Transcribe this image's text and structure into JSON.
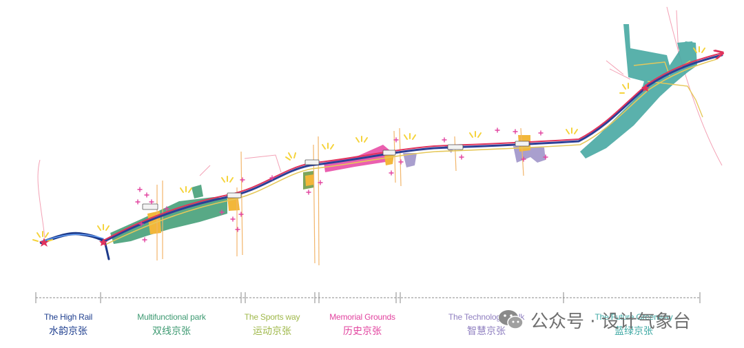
{
  "segments": [
    {
      "key": "high_rail",
      "en": "The High Rail",
      "cn": "水韵京张",
      "color": "#1f3f8f"
    },
    {
      "key": "multifunctional",
      "en": "Multifunctional park",
      "cn": "双线京张",
      "color": "#3e9a72"
    },
    {
      "key": "sports",
      "en": "The Sports way",
      "cn": "运动京张",
      "color": "#9fb84a"
    },
    {
      "key": "memorial",
      "en": "Memorial Grounds",
      "cn": "历史京张",
      "color": "#e2439f"
    },
    {
      "key": "technology",
      "en": "The Technology Walk",
      "cn": "智慧京张",
      "color": "#8f7fc0"
    },
    {
      "key": "future",
      "en": "The Future Greenway",
      "cn": "蓝绿京张",
      "color": "#3fa9a4"
    }
  ],
  "watermark": {
    "text": "公众号 · 设计气象台"
  }
}
